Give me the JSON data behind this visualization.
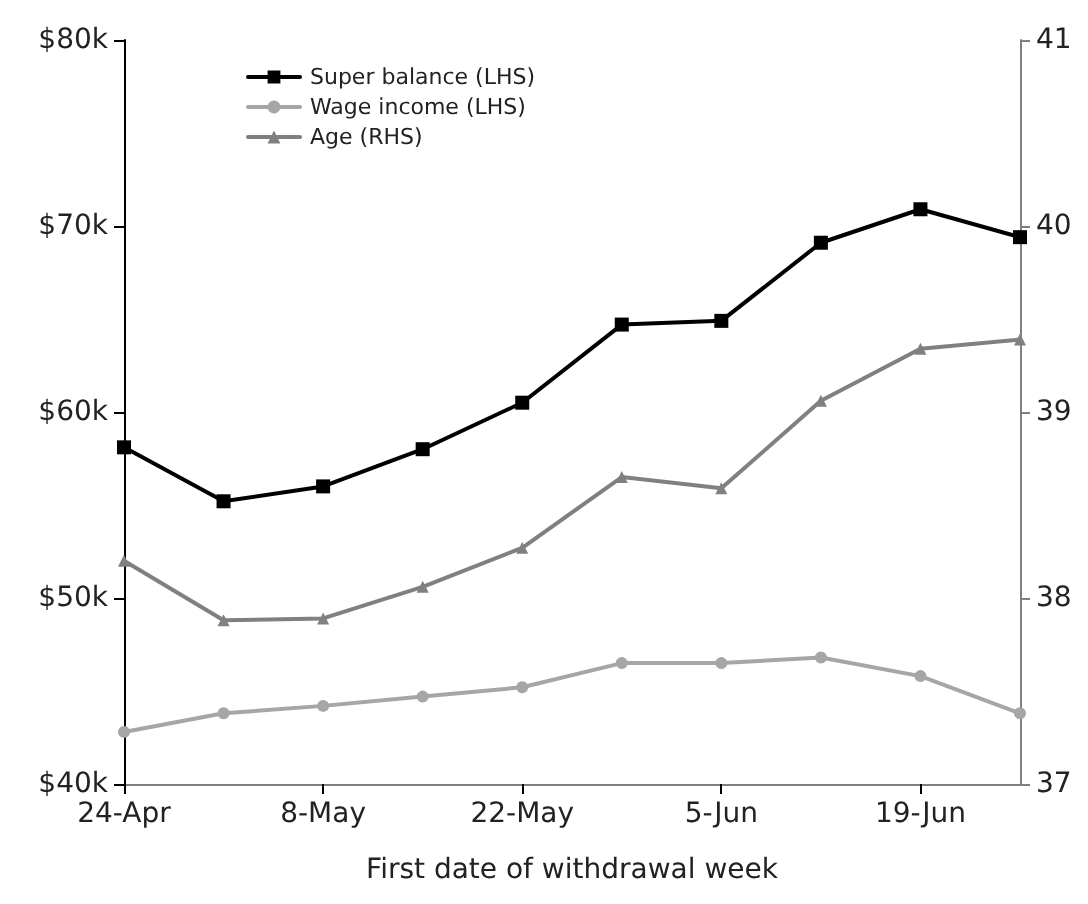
{
  "chart_data": {
    "type": "line",
    "xlabel": "First date of withdrawal week",
    "categories": [
      "24-Apr",
      null,
      "8-May",
      null,
      "22-May",
      null,
      "5-Jun",
      null,
      "19-Jun",
      null
    ],
    "series": [
      {
        "name": "Super balance (LHS)",
        "color": "#000000",
        "marker": "square",
        "values": [
          58.1,
          55.2,
          56.0,
          58.0,
          60.5,
          64.7,
          64.9,
          69.1,
          70.9,
          69.4
        ]
      },
      {
        "name": "Wage income (LHS)",
        "color": "#a6a6a6",
        "marker": "circle",
        "values": [
          42.8,
          43.8,
          44.2,
          44.7,
          45.2,
          46.5,
          46.5,
          46.8,
          45.8,
          43.8
        ]
      },
      {
        "name": "Age (RHS)",
        "color": "#808080",
        "marker": "triangle",
        "axis": "y2",
        "values": [
          38.2,
          37.88,
          37.89,
          38.06,
          38.27,
          38.65,
          38.59,
          39.06,
          39.34,
          39.39
        ]
      }
    ],
    "ylim": [
      40,
      80
    ],
    "yticks": [
      {
        "value": 40,
        "label": "$40k"
      },
      {
        "value": 50,
        "label": "$50k"
      },
      {
        "value": 60,
        "label": "$60k"
      },
      {
        "value": 70,
        "label": "$70k"
      },
      {
        "value": 80,
        "label": "$80k"
      }
    ],
    "y2lim": [
      37,
      41
    ],
    "y2ticks": [
      37,
      38,
      39,
      40,
      41
    ],
    "grid": false,
    "legend": "top left",
    "line_style": "solid"
  }
}
